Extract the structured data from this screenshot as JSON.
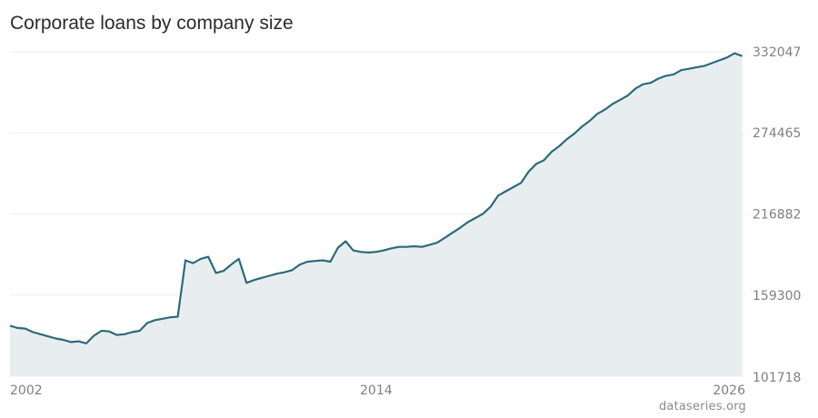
{
  "title": "Corporate loans by company size",
  "source": "dataseries.org",
  "colors": {
    "line": "#2e6a78",
    "area": "#e8eef0",
    "grid": "#eeeeee",
    "tick": "#808080"
  },
  "chart_data": {
    "type": "area",
    "title": "Corporate loans by company size",
    "xlabel": "",
    "ylabel": "",
    "xlim": [
      2002.0,
      2026.1
    ],
    "ylim": [
      101718,
      332047
    ],
    "y_ticks": [
      "101718",
      "159300",
      "216882",
      "274465",
      "332047"
    ],
    "x_ticks": [
      "2002",
      "2014",
      "2026"
    ],
    "grid": true,
    "series": [
      {
        "x": [
          2002.0,
          2002.25,
          2002.5,
          2002.75,
          2003.0,
          2003.25,
          2003.5,
          2003.75,
          2004.0,
          2004.25,
          2004.5,
          2004.75,
          2005.0,
          2005.25,
          2005.5,
          2005.75,
          2006.0,
          2006.25,
          2006.5,
          2006.75,
          2007.0,
          2007.25,
          2007.5,
          2007.75,
          2008.0,
          2008.25,
          2008.5,
          2008.75,
          2009.0,
          2009.25,
          2009.5,
          2009.75,
          2010.0,
          2010.25,
          2010.5,
          2010.75,
          2011.0,
          2011.25,
          2011.5,
          2011.75,
          2012.0,
          2012.25,
          2012.5,
          2012.75,
          2013.0,
          2013.25,
          2013.5,
          2013.75,
          2014.0,
          2014.25,
          2014.5,
          2014.75,
          2015.0,
          2015.25,
          2015.5,
          2015.75,
          2016.0,
          2016.25,
          2016.5,
          2016.75,
          2017.0,
          2017.25,
          2017.5,
          2017.75,
          2018.0,
          2018.25,
          2018.5,
          2018.75,
          2019.0,
          2019.25,
          2019.5,
          2019.75,
          2020.0,
          2020.25,
          2020.5,
          2020.75,
          2021.0,
          2021.25,
          2021.5,
          2021.75,
          2022.0,
          2022.25,
          2022.5,
          2022.75,
          2023.0,
          2023.25,
          2023.5,
          2023.75,
          2024.0,
          2024.25,
          2024.5,
          2024.75,
          2025.0,
          2025.25,
          2025.5,
          2025.75,
          2026.0
        ],
        "values": [
          137500,
          136000,
          135500,
          133000,
          131500,
          130000,
          128500,
          127500,
          126000,
          126500,
          125000,
          130500,
          134000,
          133500,
          131000,
          131500,
          133000,
          134000,
          139500,
          141500,
          142500,
          143500,
          144000,
          184000,
          182000,
          185000,
          186500,
          175000,
          176500,
          181000,
          185000,
          168000,
          170000,
          171500,
          173000,
          174500,
          175500,
          177000,
          181000,
          183000,
          183500,
          184000,
          183000,
          193000,
          197500,
          191000,
          190000,
          189500,
          190000,
          191000,
          192500,
          193500,
          193500,
          194000,
          193500,
          195000,
          196500,
          200000,
          203500,
          207000,
          211000,
          214000,
          217000,
          222000,
          230000,
          233000,
          236000,
          239000,
          247000,
          252500,
          255000,
          261000,
          265000,
          270000,
          274000,
          279000,
          283000,
          288000,
          291000,
          295000,
          298000,
          301000,
          306000,
          309000,
          310000,
          313000,
          315000,
          316000,
          319000,
          320000,
          321000,
          322000,
          324000,
          326000,
          328000,
          331000,
          329000
        ]
      }
    ]
  }
}
